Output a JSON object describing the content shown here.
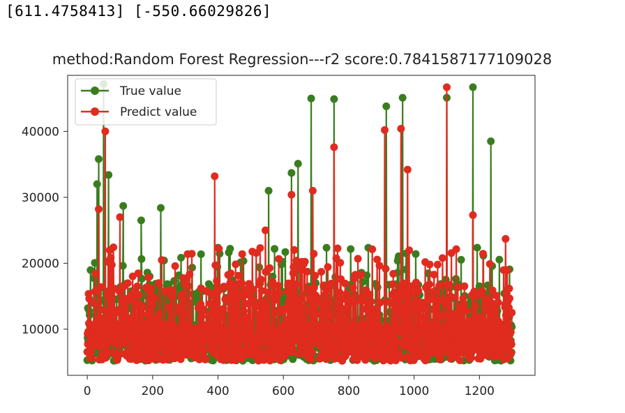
{
  "output_text": "[611.4758413] [-550.66029826]",
  "colors": {
    "true": "#3a7d1e",
    "predict": "#e02b1f",
    "axis": "#222222"
  },
  "chart_data": {
    "type": "line",
    "title": "method:Random Forest Regression---r2 score:0.7841587177109028",
    "xlabel": "",
    "ylabel": "",
    "xlim": [
      -60,
      1370
    ],
    "ylim": [
      3000,
      48500
    ],
    "xticks": [
      0,
      200,
      400,
      600,
      800,
      1000,
      1200
    ],
    "xtick_labels": [
      "0",
      "200",
      "400",
      "600",
      "800",
      "1000",
      "1200"
    ],
    "yticks": [
      10000,
      20000,
      30000,
      40000
    ],
    "ytick_labels": [
      "10000",
      "20000",
      "30000",
      "40000"
    ],
    "legend_position": "top-left",
    "n_points": 1300,
    "series": [
      {
        "name": "True value",
        "peaks": [
          [
            30,
            32000
          ],
          [
            35,
            35800
          ],
          [
            50,
            47200
          ],
          [
            65,
            33400
          ],
          [
            110,
            28700
          ],
          [
            165,
            26500
          ],
          [
            225,
            28400
          ],
          [
            555,
            31000
          ],
          [
            625,
            33700
          ],
          [
            645,
            35100
          ],
          [
            685,
            45000
          ],
          [
            755,
            44900
          ],
          [
            915,
            43800
          ],
          [
            965,
            45100
          ],
          [
            1100,
            45100
          ],
          [
            1180,
            46700
          ],
          [
            1235,
            38500
          ]
        ]
      },
      {
        "name": "Predict value",
        "peaks": [
          [
            35,
            28200
          ],
          [
            55,
            40000
          ],
          [
            100,
            27000
          ],
          [
            390,
            33200
          ],
          [
            545,
            25000
          ],
          [
            625,
            30400
          ],
          [
            690,
            31000
          ],
          [
            755,
            37600
          ],
          [
            910,
            40200
          ],
          [
            960,
            40400
          ],
          [
            980,
            34200
          ],
          [
            1100,
            46700
          ],
          [
            1180,
            27300
          ],
          [
            1280,
            23700
          ]
        ]
      }
    ]
  }
}
